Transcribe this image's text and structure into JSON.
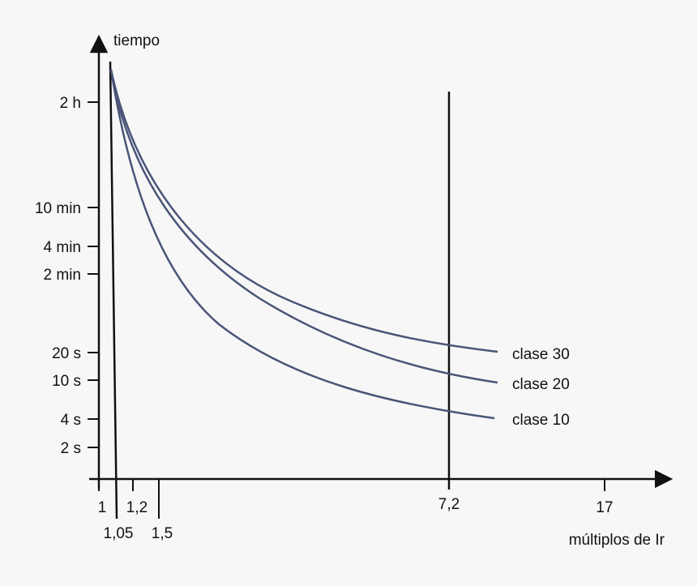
{
  "chart_data": {
    "type": "line",
    "ylabel": "tiempo",
    "xlabel": "múltiplos de Ir",
    "x_ticks": [
      "1",
      "1,05",
      "1,2",
      "1,5",
      "7,2",
      "17"
    ],
    "y_ticks": [
      "2 h",
      "10 min",
      "4 min",
      "2 min",
      "20 s",
      "10 s",
      "4 s",
      "2 s"
    ],
    "vertical_marker": "7,2",
    "series": [
      {
        "name": "clase 30",
        "color": "#4a5578",
        "points": [
          {
            "x": 1.05,
            "y": "2 h"
          },
          {
            "x": 1.5,
            "y": "~15 min"
          },
          {
            "x": 2,
            "y": "~6 min"
          },
          {
            "x": 3,
            "y": "~2 min"
          },
          {
            "x": 5,
            "y": "~40 s"
          },
          {
            "x": 7.2,
            "y": "~20 s"
          },
          {
            "x": 9,
            "y": "~18 s"
          }
        ]
      },
      {
        "name": "clase 20",
        "color": "#4a5578",
        "points": [
          {
            "x": 1.05,
            "y": "2 h"
          },
          {
            "x": 1.5,
            "y": "~9 min"
          },
          {
            "x": 2,
            "y": "~4 min"
          },
          {
            "x": 3,
            "y": "~1 min"
          },
          {
            "x": 5,
            "y": "~25 s"
          },
          {
            "x": 7.2,
            "y": "~12 s"
          },
          {
            "x": 9,
            "y": "~10 s"
          }
        ]
      },
      {
        "name": "clase 10",
        "color": "#4a5578",
        "points": [
          {
            "x": 1.05,
            "y": "2 h"
          },
          {
            "x": 1.5,
            "y": "~5 min"
          },
          {
            "x": 2,
            "y": "~2 min"
          },
          {
            "x": 3,
            "y": "~35 s"
          },
          {
            "x": 5,
            "y": "~12 s"
          },
          {
            "x": 7.2,
            "y": "~6 s"
          },
          {
            "x": 9,
            "y": "~4 s"
          }
        ]
      }
    ]
  }
}
